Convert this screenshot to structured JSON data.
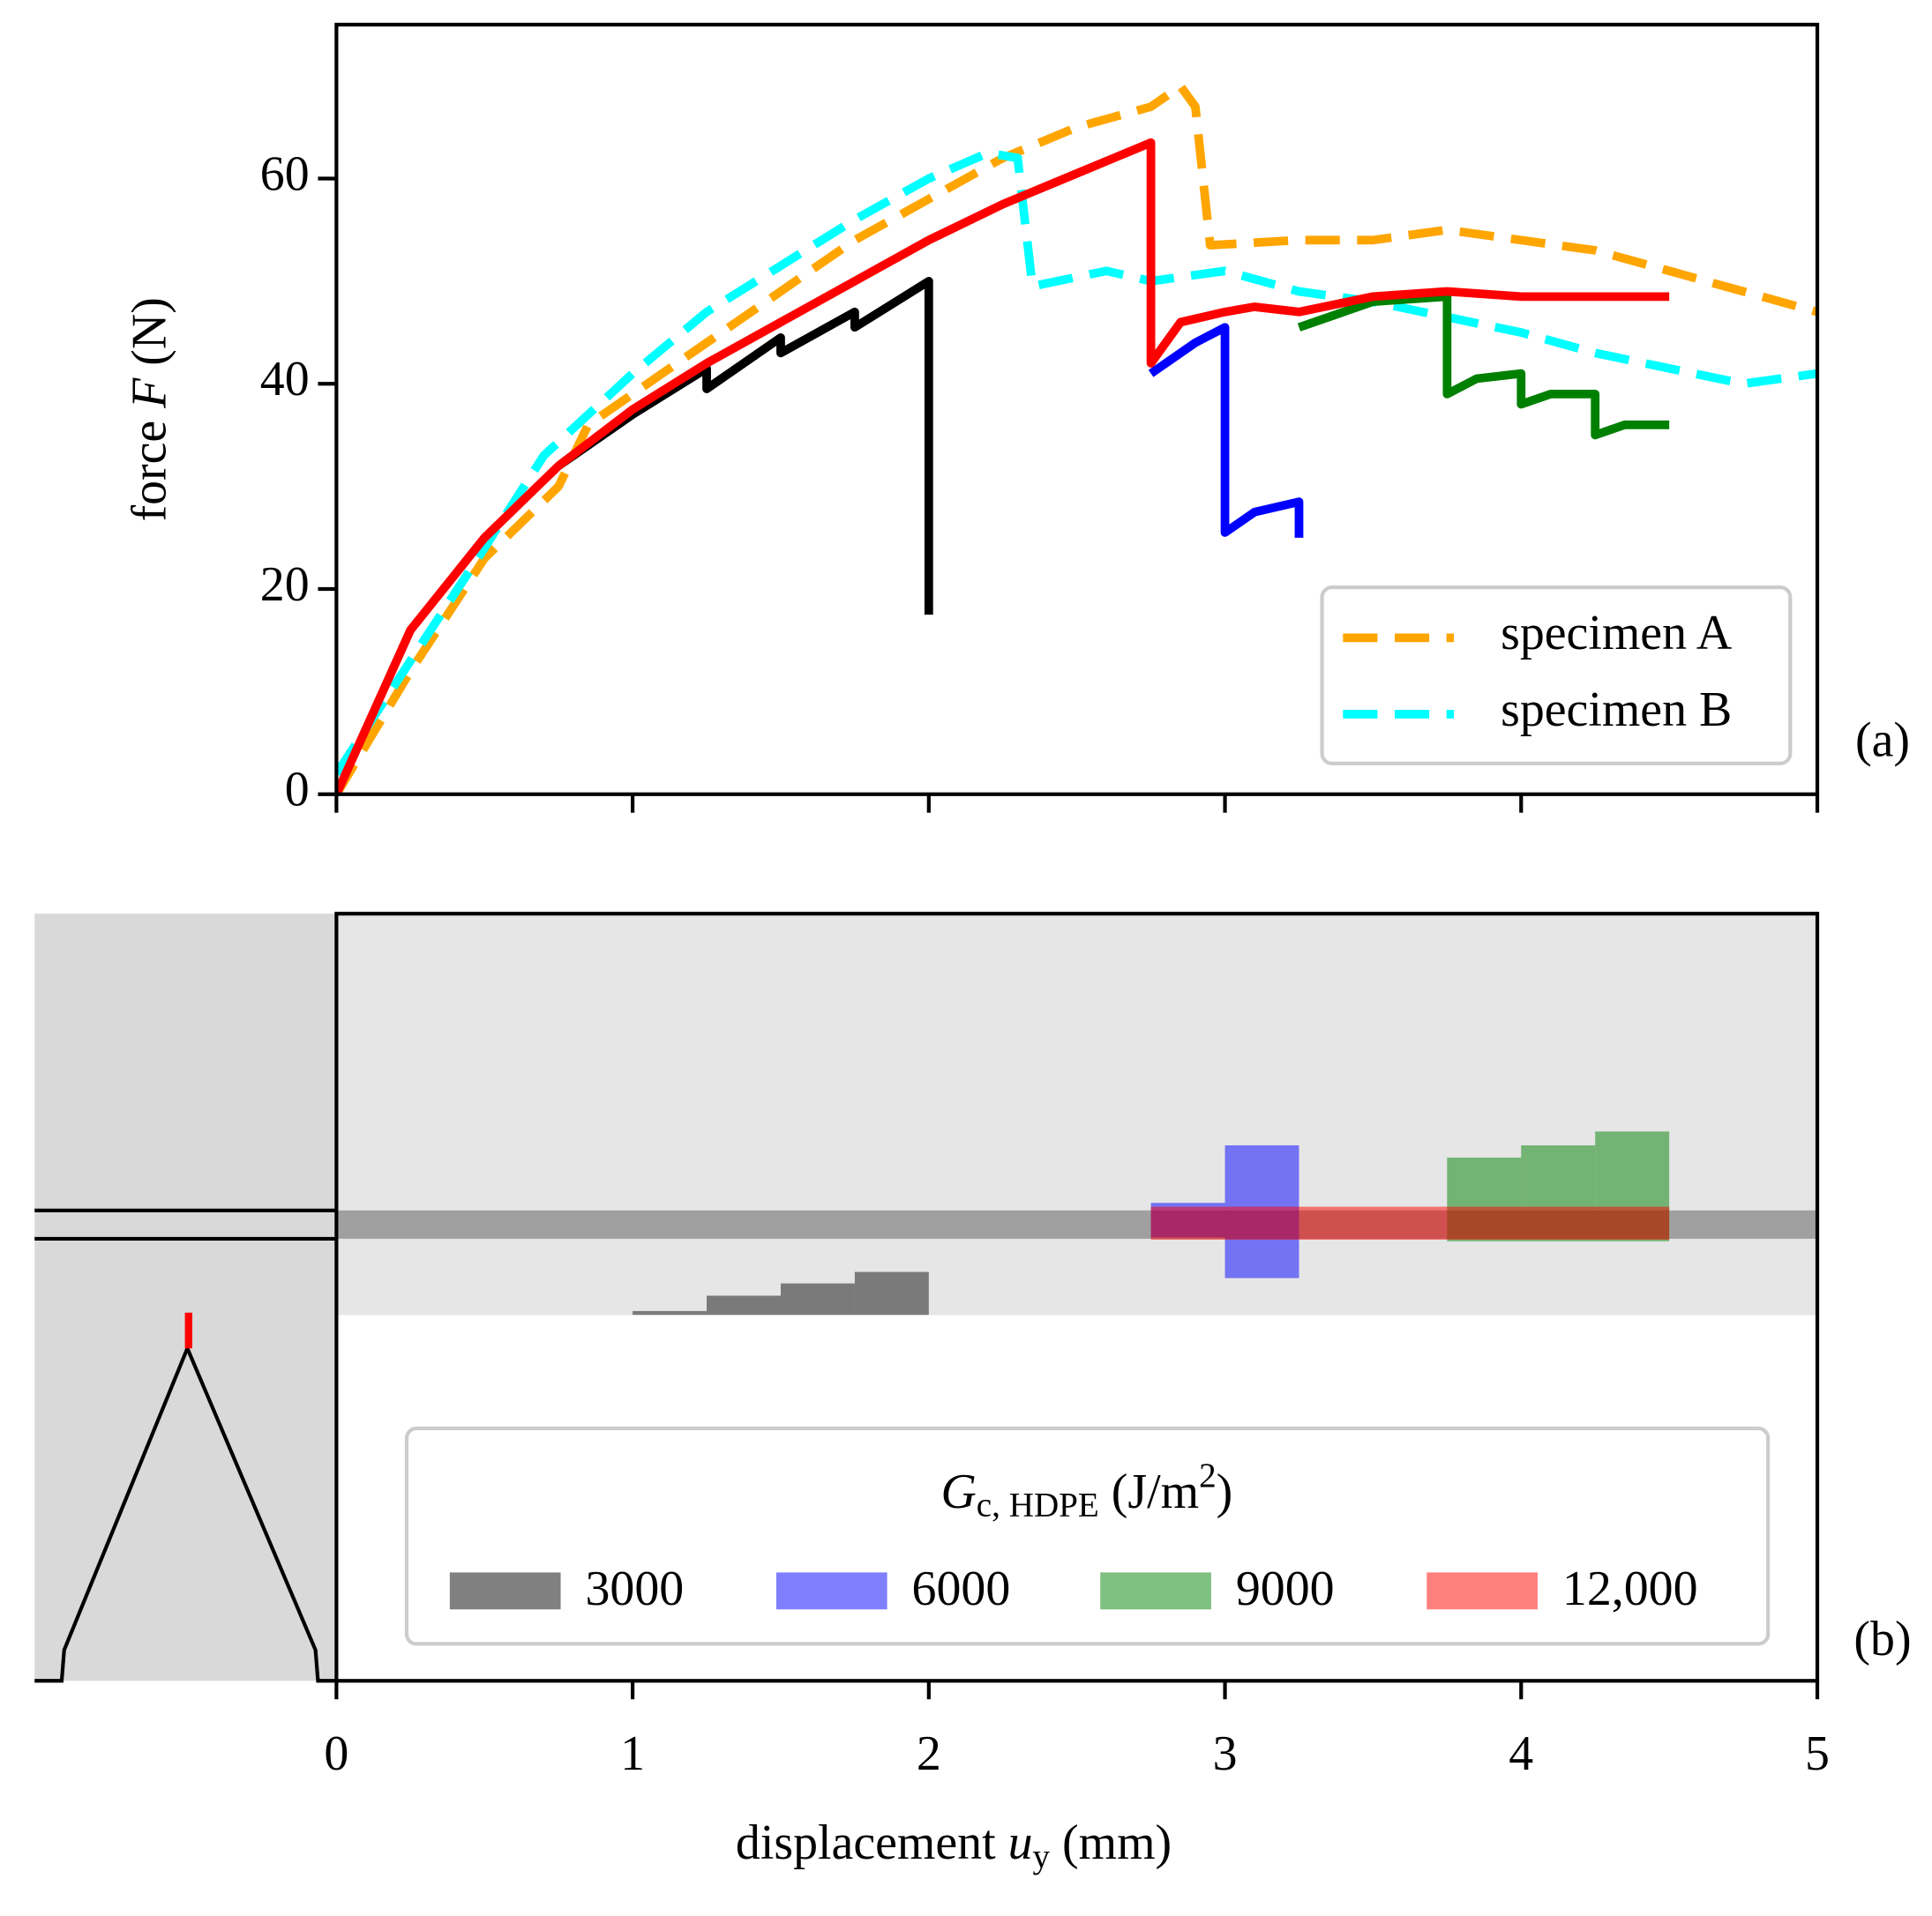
{
  "chart_data": [
    {
      "type": "line",
      "panel_label": "(a)",
      "ylabel": [
        "force ",
        "F",
        " (N)"
      ],
      "xlim": [
        0,
        5
      ],
      "xticks": [
        0,
        1,
        2,
        3,
        4,
        5
      ],
      "ylim": [
        0,
        75
      ],
      "yticks": [
        0,
        20,
        40,
        60
      ],
      "legend": "lower right",
      "series": [
        {
          "name": "specimen A",
          "color": "#ffa500",
          "linestyle": "dashed",
          "x": [
            0,
            0.25,
            0.5,
            0.75,
            0.85,
            1,
            1.25,
            1.5,
            1.75,
            2,
            2.25,
            2.5,
            2.75,
            2.85,
            2.9,
            2.95,
            3.25,
            3.5,
            3.75,
            4,
            4.25,
            4.5,
            4.75,
            5
          ],
          "values": [
            0,
            12,
            23,
            30,
            36,
            39,
            44,
            49,
            54,
            58,
            62,
            65,
            67,
            69,
            67,
            53.5,
            54,
            54,
            55,
            54,
            53,
            51,
            49,
            47
          ]
        },
        {
          "name": "specimen B",
          "color": "#00ffff",
          "linestyle": "dashed",
          "x": [
            0,
            0.25,
            0.5,
            0.7,
            1,
            1.25,
            1.5,
            1.75,
            2,
            2.2,
            2.3,
            2.35,
            2.6,
            2.75,
            3,
            3.25,
            3.5,
            3.75,
            4,
            4.25,
            4.5,
            4.75,
            5
          ],
          "values": [
            2,
            13,
            24,
            33,
            41,
            47,
            51.5,
            56,
            60,
            62.5,
            62,
            49.5,
            51,
            50,
            51,
            49,
            48,
            46.5,
            45,
            43,
            41.5,
            40,
            41
          ]
        },
        {
          "color": "#000000",
          "linestyle": "solid",
          "x": [
            0.75,
            1,
            1.25,
            1.25,
            1.5,
            1.5,
            1.75,
            1.75,
            2,
            2
          ],
          "values": [
            32,
            37,
            41.5,
            39.5,
            44.5,
            43,
            47,
            45.5,
            50,
            17.5
          ]
        },
        {
          "color": "#0000ff",
          "linestyle": "solid",
          "x": [
            2.75,
            2.9,
            3,
            3,
            3.1,
            3.25,
            3.25
          ],
          "values": [
            41,
            44,
            45.5,
            25.5,
            27.5,
            28.5,
            25
          ]
        },
        {
          "color": "#008000",
          "linestyle": "solid",
          "x": [
            3.25,
            3.5,
            3.75,
            3.75,
            3.85,
            4,
            4,
            4.1,
            4.25,
            4.25,
            4.35,
            4.5
          ],
          "values": [
            45.5,
            48,
            48.5,
            39,
            40.5,
            41,
            38,
            39,
            39,
            35,
            36,
            36
          ]
        },
        {
          "color": "#ff0000",
          "linestyle": "solid",
          "x": [
            0,
            0.25,
            0.5,
            0.75,
            1,
            1.25,
            1.5,
            1.75,
            2,
            2.25,
            2.5,
            2.75,
            2.75,
            2.85,
            3,
            3.1,
            3.25,
            3.5,
            3.75,
            4,
            4.5
          ],
          "values": [
            0,
            16,
            25,
            32,
            37.5,
            42,
            46,
            50,
            54,
            57.5,
            60.5,
            63.5,
            42,
            46,
            47,
            47.5,
            47,
            48.5,
            49,
            48.5,
            48.5
          ]
        }
      ]
    },
    {
      "type": "range_bar",
      "panel_label": "(b)",
      "xlabel": [
        "displacement ",
        "u",
        "y",
        " (mm)"
      ],
      "xlim": [
        0,
        5
      ],
      "xticks": [
        0,
        1,
        2,
        3,
        4,
        5
      ],
      "ylim": [
        0,
        100
      ],
      "legend_title": [
        "G",
        "c, HDPE",
        " (J/m",
        "2",
        ")"
      ],
      "series": [
        {
          "name": "3000",
          "color": "#555555",
          "opacity": 0.75,
          "bins": [
            1,
            1.25,
            1.5,
            1.75,
            2
          ],
          "lows": [
            47.7,
            47.7,
            47.7,
            47.7
          ],
          "values": [
            48.2,
            50.2,
            51.8,
            53.3
          ]
        },
        {
          "name": "6000",
          "color": "#0000ff",
          "opacity": 0.5,
          "bins": [
            2.75,
            3,
            3.25
          ],
          "lows": [
            57.8,
            52.5
          ],
          "values": [
            62.3,
            69.8
          ]
        },
        {
          "name": "9000",
          "color": "#008000",
          "opacity": 0.5,
          "bins": [
            3.75,
            4,
            4.25,
            4.5
          ],
          "lows": [
            57.3,
            57.3,
            57.3
          ],
          "values": [
            68.2,
            69.8,
            71.6
          ]
        },
        {
          "name": "12,000",
          "color": "#ff0000",
          "opacity": 0.5,
          "bins": [
            2.75,
            4.5
          ],
          "lows": [
            57.5
          ],
          "values": [
            61.8
          ]
        }
      ]
    }
  ]
}
